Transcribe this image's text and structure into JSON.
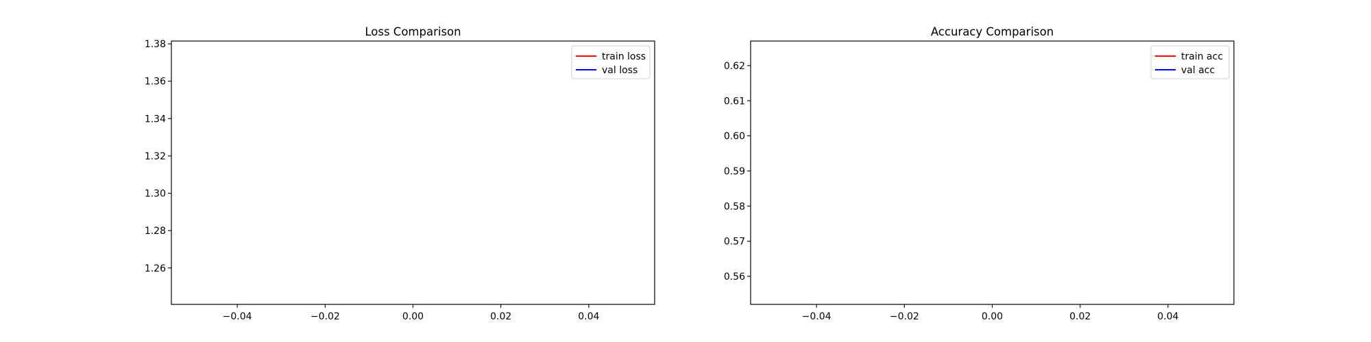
{
  "chart_data": [
    {
      "type": "line",
      "title": "Loss Comparison",
      "xlabel": "",
      "ylabel": "",
      "xlim": [
        -0.055,
        0.055
      ],
      "ylim": [
        1.2405,
        1.3815
      ],
      "xticks": [
        -0.04,
        -0.02,
        0.0,
        0.02,
        0.04
      ],
      "xtick_labels": [
        "−0.04",
        "−0.02",
        "0.00",
        "0.02",
        "0.04"
      ],
      "yticks": [
        1.26,
        1.28,
        1.3,
        1.32,
        1.34,
        1.36,
        1.38
      ],
      "ytick_labels": [
        "1.26",
        "1.28",
        "1.30",
        "1.32",
        "1.34",
        "1.36",
        "1.38"
      ],
      "grid": false,
      "legend_position": "top-right",
      "series": [
        {
          "name": "train loss",
          "color": "#ff0000",
          "x": [],
          "y": []
        },
        {
          "name": "val loss",
          "color": "#0000ff",
          "x": [],
          "y": []
        }
      ]
    },
    {
      "type": "line",
      "title": "Accuracy Comparison",
      "xlabel": "",
      "ylabel": "",
      "xlim": [
        -0.055,
        0.055
      ],
      "ylim": [
        0.552,
        0.627
      ],
      "xticks": [
        -0.04,
        -0.02,
        0.0,
        0.02,
        0.04
      ],
      "xtick_labels": [
        "−0.04",
        "−0.02",
        "0.00",
        "0.02",
        "0.04"
      ],
      "yticks": [
        0.56,
        0.57,
        0.58,
        0.59,
        0.6,
        0.61,
        0.62
      ],
      "ytick_labels": [
        "0.56",
        "0.57",
        "0.58",
        "0.59",
        "0.60",
        "0.61",
        "0.62"
      ],
      "grid": false,
      "legend_position": "top-right",
      "series": [
        {
          "name": "train acc",
          "color": "#ff0000",
          "x": [],
          "y": []
        },
        {
          "name": "val acc",
          "color": "#0000ff",
          "x": [],
          "y": []
        }
      ]
    }
  ]
}
